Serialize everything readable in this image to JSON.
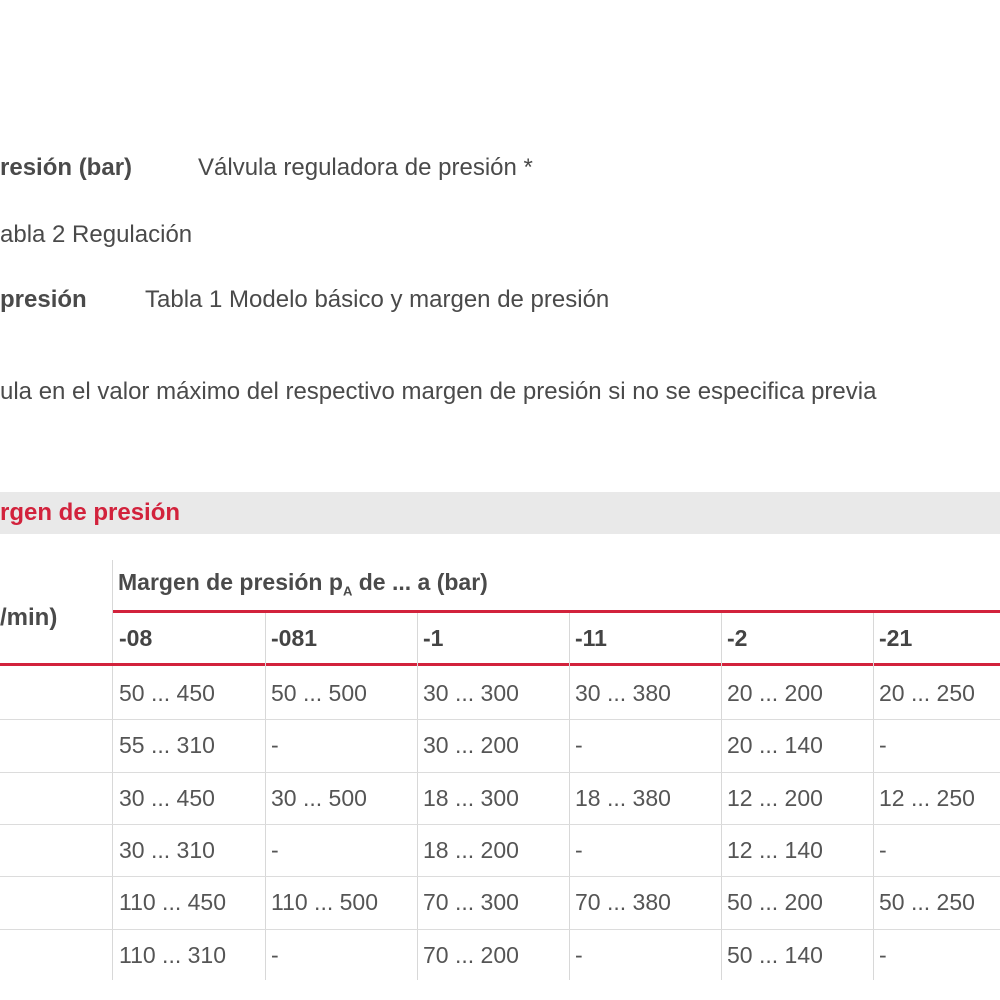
{
  "lines": {
    "l1_label": "resión (bar)",
    "l1_value": "Válvula reguladora de presión *",
    "l2": "abla 2 Regulación",
    "l3_label": "presión",
    "l3_value": "Tabla 1 Modelo básico y margen de presión",
    "note": "ula en el valor máximo del respectivo margen de presión si no se especifica previa"
  },
  "section_title": "rgen de presión",
  "table": {
    "row_header": "/min)",
    "group_header": "Margen de presión pA de ... a (bar)",
    "columns": [
      "-08",
      "-081",
      "-1",
      "-11",
      "-2",
      "-21"
    ],
    "rows": [
      [
        "50 ... 450",
        "50 ... 500",
        "30 ... 300",
        "30 ... 380",
        "20 ... 200",
        "20 ... 250"
      ],
      [
        "55 ... 310",
        "-",
        "30 ... 200",
        "-",
        "20 ... 140",
        "-"
      ],
      [
        "30 ... 450",
        "30 ... 500",
        "18 ... 300",
        "18 ... 380",
        "12 ... 200",
        "12 ... 250"
      ],
      [
        "30 ... 310",
        "-",
        "18 ... 200",
        "-",
        "12 ... 140",
        "-"
      ],
      [
        "110 ... 450",
        "110 ... 500",
        "70 ... 300",
        "70 ... 380",
        "50 ... 200",
        "50 ... 250"
      ],
      [
        "110 ... 310",
        "-",
        "70 ... 200",
        "-",
        "50 ... 140",
        "-"
      ]
    ]
  },
  "colors": {
    "accent": "#d2223c",
    "band": "#e9e9e9",
    "text": "#4a4a4a"
  }
}
